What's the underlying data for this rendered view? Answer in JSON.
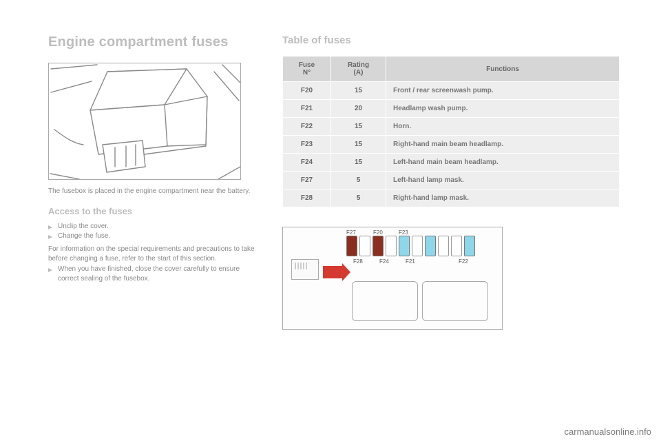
{
  "left": {
    "title": "Engine compartment fuses",
    "caption": "The fusebox is placed in the engine compartment near the battery.",
    "access_heading": "Access to the fuses",
    "bullets": [
      "Unclip the cover.",
      "Change the fuse."
    ],
    "note1": "For information on the special requirements and precautions to take before changing a fuse, refer to the start of this section.",
    "bullet3": "When you have finished, close the cover carefully to ensure correct sealing of the fusebox."
  },
  "right": {
    "table_title": "Table of fuses",
    "headers": {
      "col1_a": "Fuse",
      "col1_b": "N°",
      "col2_a": "Rating",
      "col2_b": "(A)",
      "col3": "Functions"
    },
    "rows": [
      {
        "n": "F20",
        "a": "15",
        "fn": "Front / rear screenwash pump."
      },
      {
        "n": "F21",
        "a": "20",
        "fn": "Headlamp wash pump."
      },
      {
        "n": "F22",
        "a": "15",
        "fn": "Horn."
      },
      {
        "n": "F23",
        "a": "15",
        "fn": "Right-hand main beam headlamp."
      },
      {
        "n": "F24",
        "a": "15",
        "fn": "Left-hand main beam headlamp."
      },
      {
        "n": "F27",
        "a": "5",
        "fn": "Left-hand lamp mask."
      },
      {
        "n": "F28",
        "a": "5",
        "fn": "Right-hand lamp mask."
      }
    ],
    "diagram": {
      "top_labels": [
        "F27",
        "F20",
        "F23"
      ],
      "bot_labels": [
        "F28",
        "F24",
        "F21",
        "F22"
      ],
      "slots": [
        {
          "c": "#8a2f20"
        },
        {
          "c": null
        },
        {
          "c": "#8a2f20"
        },
        {
          "c": null
        },
        {
          "c": "#8fd6ea"
        },
        {
          "c": null
        },
        {
          "c": "#8fd6ea"
        },
        {
          "c": null
        },
        {
          "c": null
        },
        {
          "c": "#8fd6ea"
        }
      ],
      "top_pos": [
        92,
        131,
        168
      ],
      "bot_pos": [
        102,
        140,
        178,
        255
      ]
    }
  },
  "watermark": "carmanualsonline.info",
  "colors": {
    "heading": "#bdbdbd",
    "text": "#888888",
    "th_bg": "#d6d6d6",
    "td_bg": "#eeeeee",
    "arrow": "#d43a2f"
  }
}
